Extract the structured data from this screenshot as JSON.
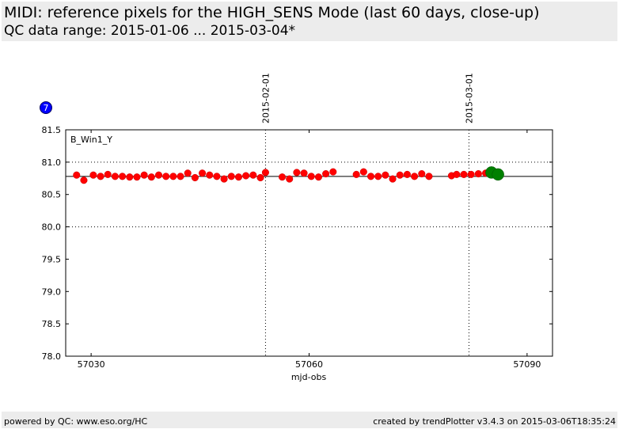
{
  "header": {
    "title": "MIDI: reference pixels for the HIGH_SENS Mode (last 60 days, close-up)",
    "subtitle": "QC data range: 2015-01-06 ... 2015-03-04*"
  },
  "badge": {
    "label": "7",
    "color": "#0000ff"
  },
  "footer": {
    "left": "powered by QC: www.eso.org/HC",
    "right": "created by trendPlotter v3.4.3 on 2015-03-06T18:35:24"
  },
  "chart_data": {
    "type": "scatter",
    "title": "",
    "panel_label": "B_Win1_Y",
    "xlabel": "mjd-obs",
    "ylabel": "",
    "xlim": [
      57026.5,
      57093.5
    ],
    "ylim": [
      78.0,
      81.5
    ],
    "xticks": [
      57030,
      57060,
      57090
    ],
    "xtick_labels": [
      "57030",
      "57060",
      "57090"
    ],
    "yticks": [
      78.0,
      78.5,
      79.0,
      79.5,
      80.0,
      80.5,
      81.0,
      81.5
    ],
    "ytick_labels": [
      "78.0",
      "78.5",
      "79.0",
      "79.5",
      "80.0",
      "80.5",
      "81.0",
      "81.5"
    ],
    "reference_line": 80.78,
    "dotted_hlines": [
      81.0,
      80.0
    ],
    "date_markers": [
      {
        "x": 57054.0,
        "label": "2015-02-01"
      },
      {
        "x": 57082.0,
        "label": "2015-03-01"
      }
    ],
    "grid": false,
    "colors": {
      "points": "#ff0000",
      "latest": "#008000",
      "reference": "#000000"
    },
    "series": [
      {
        "role": "measurements",
        "x": [
          57028.0,
          57029.0,
          57030.3,
          57031.3,
          57032.3,
          57033.3,
          57034.3,
          57035.3,
          57036.3,
          57037.3,
          57038.3,
          57039.3,
          57040.3,
          57041.3,
          57042.3,
          57043.3,
          57044.3,
          57045.3,
          57046.3,
          57047.3,
          57048.3,
          57049.3,
          57050.3,
          57051.3,
          57052.3,
          57053.3,
          57054.0,
          57056.3,
          57057.3,
          57058.3,
          57059.3,
          57060.3,
          57061.3,
          57062.3,
          57063.3,
          57066.5,
          57067.5,
          57068.5,
          57069.5,
          57070.5,
          57071.5,
          57072.5,
          57073.5,
          57074.5,
          57075.5,
          57076.5,
          57079.6,
          57080.3,
          57081.3,
          57082.3,
          57083.3,
          57084.3,
          57085.3,
          57086.3
        ],
        "y": [
          80.8,
          80.72,
          80.8,
          80.78,
          80.81,
          80.78,
          80.78,
          80.77,
          80.77,
          80.8,
          80.77,
          80.8,
          80.78,
          80.78,
          80.78,
          80.83,
          80.76,
          80.83,
          80.8,
          80.78,
          80.74,
          80.78,
          80.77,
          80.79,
          80.8,
          80.76,
          80.84,
          80.77,
          80.74,
          80.84,
          80.83,
          80.78,
          80.77,
          80.82,
          80.85,
          80.81,
          80.85,
          80.78,
          80.78,
          80.8,
          80.74,
          80.8,
          80.81,
          80.78,
          80.82,
          80.78,
          80.79,
          80.81,
          80.81,
          80.81,
          80.82,
          80.83,
          80.85,
          80.81
        ]
      },
      {
        "role": "latest",
        "x": [
          57085.1,
          57086.0
        ],
        "y": [
          80.84,
          80.81
        ]
      }
    ]
  }
}
